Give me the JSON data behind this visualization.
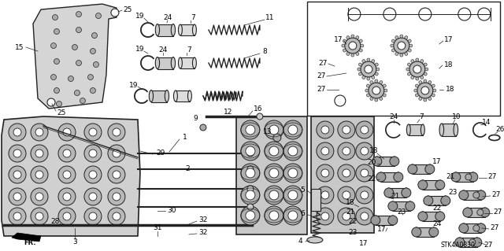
{
  "bg_color": "#ffffff",
  "diagram_code": "STK4A0830",
  "fig_width": 6.4,
  "fig_height": 3.19,
  "dpi": 100,
  "line_color": "#222222",
  "part_color": "#888888",
  "body_fill": "#cccccc",
  "spring_color": "#333333"
}
